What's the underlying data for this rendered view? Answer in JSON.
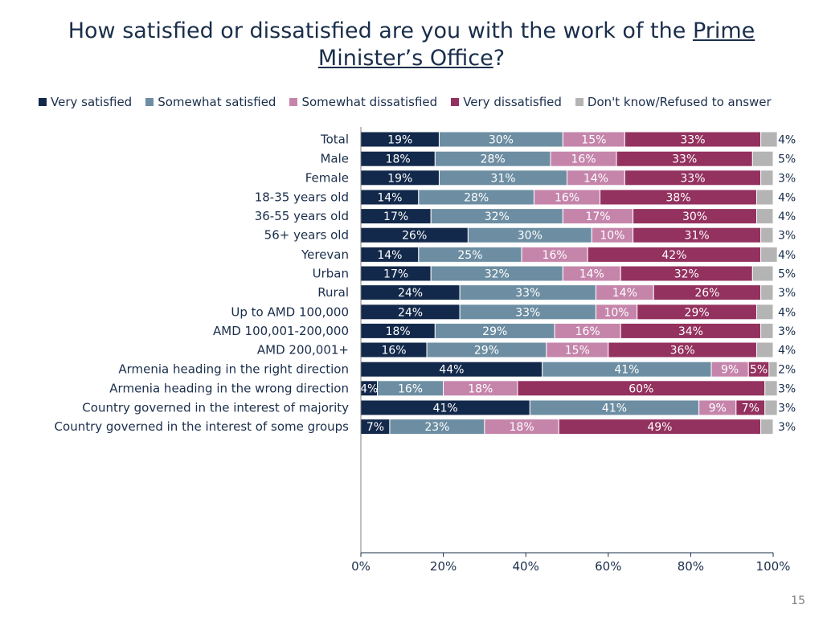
{
  "title": {
    "line1": "How satisfied or dissatisfied are you with the work of the",
    "line1_underlined": "Prime",
    "line2_underlined": "Minister’s Office",
    "line2_suffix": "?"
  },
  "page_number": "15",
  "chart_data": {
    "type": "bar",
    "orientation": "horizontal",
    "stacked": true,
    "xlim": [
      0,
      100
    ],
    "x_ticks": [
      "0%",
      "20%",
      "40%",
      "60%",
      "80%",
      "100%"
    ],
    "legend_position": "top",
    "series": [
      {
        "name": "Very satisfied",
        "color": "#13294b",
        "label_color": "#ffffff"
      },
      {
        "name": "Somewhat satisfied",
        "color": "#6d8ea2",
        "label_color": "#ffffff"
      },
      {
        "name": "Somewhat dissatisfied",
        "color": "#c585ab",
        "label_color": "#ffffff"
      },
      {
        "name": "Very dissatisfied",
        "color": "#93315f",
        "label_color": "#ffffff"
      },
      {
        "name": "Don't know/Refused to answer",
        "color": "#b4b4b4",
        "label_color": "#1a2e4b"
      }
    ],
    "categories": [
      "Total",
      "Male",
      "Female",
      "18-35 years old",
      "36-55 years old",
      "56+ years old",
      "Yerevan",
      "Urban",
      "Rural",
      "Up to AMD 100,000",
      "AMD 100,001-200,000",
      "AMD 200,001+",
      "Armenia heading in the right direction",
      "Armenia heading in the wrong direction",
      "Country governed in the interest of majority",
      "Country governed in the interest of some groups"
    ],
    "groups": [
      [
        0
      ],
      [
        1,
        2
      ],
      [
        3,
        4,
        5
      ],
      [
        6,
        7,
        8
      ],
      [
        9,
        10,
        11
      ],
      [
        12,
        13
      ],
      [
        14,
        15
      ]
    ],
    "values": [
      [
        19,
        30,
        15,
        33,
        4
      ],
      [
        18,
        28,
        16,
        33,
        5
      ],
      [
        19,
        31,
        14,
        33,
        3
      ],
      [
        14,
        28,
        16,
        38,
        4
      ],
      [
        17,
        32,
        17,
        30,
        4
      ],
      [
        26,
        30,
        10,
        31,
        3
      ],
      [
        14,
        25,
        16,
        42,
        4
      ],
      [
        17,
        32,
        14,
        32,
        5
      ],
      [
        24,
        33,
        14,
        26,
        3
      ],
      [
        24,
        33,
        10,
        29,
        4
      ],
      [
        18,
        29,
        16,
        34,
        3
      ],
      [
        16,
        29,
        15,
        36,
        4
      ],
      [
        44,
        41,
        9,
        5,
        2
      ],
      [
        4,
        16,
        18,
        60,
        3
      ],
      [
        41,
        41,
        9,
        7,
        3
      ],
      [
        7,
        23,
        18,
        49,
        3
      ]
    ]
  }
}
